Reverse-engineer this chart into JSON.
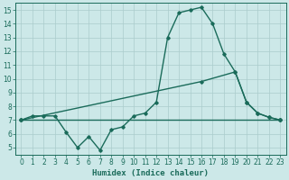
{
  "title": "",
  "xlabel": "Humidex (Indice chaleur)",
  "background_color": "#cce8e8",
  "grid_color": "#aacccc",
  "line_color": "#1a6b5a",
  "xlim": [
    -0.5,
    23.5
  ],
  "ylim": [
    4.5,
    15.5
  ],
  "xticks": [
    0,
    1,
    2,
    3,
    4,
    5,
    6,
    7,
    8,
    9,
    10,
    11,
    12,
    13,
    14,
    15,
    16,
    17,
    18,
    19,
    20,
    21,
    22,
    23
  ],
  "yticks": [
    5,
    6,
    7,
    8,
    9,
    10,
    11,
    12,
    13,
    14,
    15
  ],
  "line1_x": [
    0,
    1,
    2,
    3,
    4,
    5,
    6,
    7,
    8,
    9,
    10,
    11,
    12,
    13,
    14,
    15,
    16,
    17,
    18,
    19,
    20,
    21,
    22,
    23
  ],
  "line1_y": [
    7.0,
    7.3,
    7.3,
    7.3,
    6.1,
    5.0,
    5.8,
    4.8,
    6.3,
    6.5,
    7.3,
    7.5,
    8.3,
    13.0,
    14.8,
    15.0,
    15.2,
    14.0,
    11.8,
    10.5,
    8.3,
    7.5,
    7.2,
    7.0
  ],
  "line2_x": [
    0,
    16,
    19,
    20,
    21,
    22,
    23
  ],
  "line2_y": [
    7.0,
    9.8,
    10.5,
    8.3,
    7.5,
    7.2,
    7.0
  ],
  "line3_x": [
    0,
    23
  ],
  "line3_y": [
    7.0,
    7.0
  ],
  "marker": "D",
  "markersize": 1.8,
  "linewidth": 1.0
}
